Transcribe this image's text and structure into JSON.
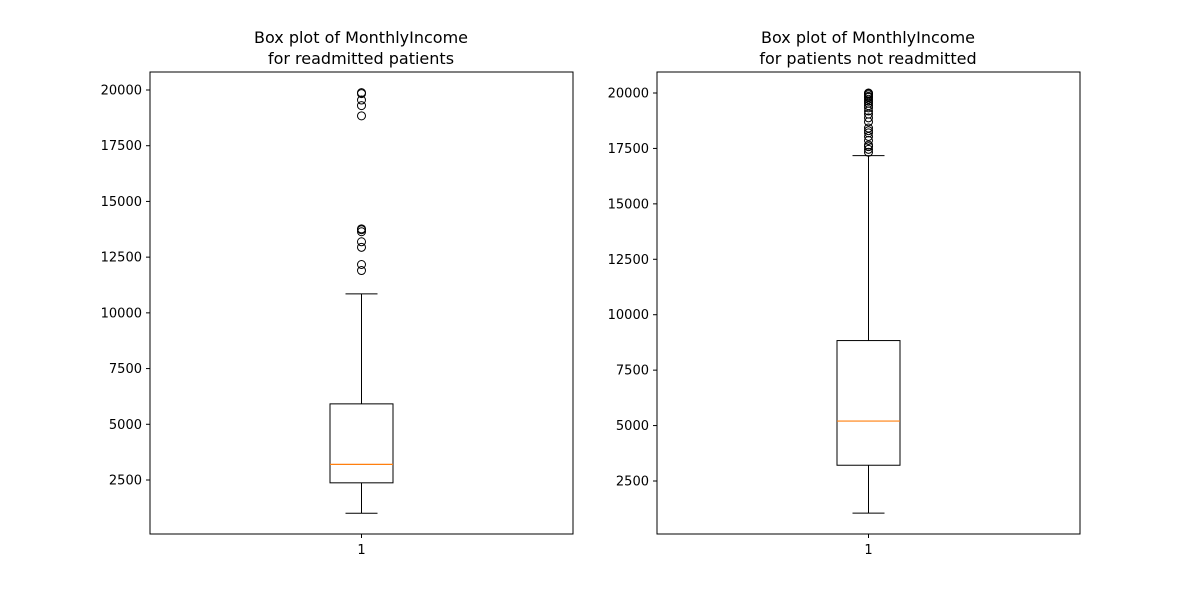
{
  "chart_data": [
    {
      "type": "box",
      "title_lines": [
        "Box plot of MonthlyIncome",
        "for readmitted patients"
      ],
      "categories": [
        "1"
      ],
      "ylim": [
        0,
        21000
      ],
      "yticks": [
        2500,
        5000,
        7500,
        10000,
        12500,
        15000,
        17500,
        20000
      ],
      "ytick_labels": [
        "2500",
        "5000",
        "7500",
        "10000",
        "12500",
        "15000",
        "17500",
        "20000"
      ],
      "box": {
        "whisker_low": 1009,
        "q1": 2373,
        "median": 3202,
        "q3": 5916,
        "whisker_high": 10854
      },
      "outliers": [
        11900,
        12170,
        12940,
        13190,
        13640,
        13730,
        13770,
        18840,
        19300,
        19550,
        19840,
        19880
      ],
      "colors": {
        "box": "#000000",
        "median": "#ff7f0e"
      }
    },
    {
      "type": "box",
      "title_lines": [
        "Box plot of MonthlyIncome",
        "for patients not readmitted"
      ],
      "categories": [
        "1"
      ],
      "ylim": [
        0,
        21000
      ],
      "yticks": [
        2500,
        5000,
        7500,
        10000,
        12500,
        15000,
        17500,
        20000
      ],
      "ytick_labels": [
        "2500",
        "5000",
        "7500",
        "10000",
        "12500",
        "15000",
        "17500",
        "20000"
      ],
      "box": {
        "whisker_low": 1051,
        "q1": 3211,
        "median": 5204,
        "q3": 8834,
        "whisker_high": 17174
      },
      "outliers": [
        17330,
        17460,
        17580,
        17650,
        17860,
        18040,
        18200,
        18300,
        18420,
        18700,
        18880,
        19050,
        19190,
        19330,
        19430,
        19540,
        19630,
        19720,
        19800,
        19850,
        19920,
        19970,
        19999
      ],
      "colors": {
        "box": "#000000",
        "median": "#ff7f0e"
      }
    }
  ]
}
